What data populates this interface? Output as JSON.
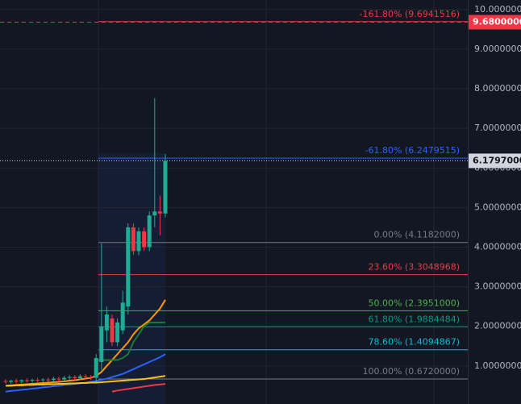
{
  "chart_data": {
    "type": "candlestick",
    "categories": [
      null,
      null,
      null,
      null,
      null,
      null,
      null,
      null,
      null,
      null,
      null,
      null,
      null,
      null,
      null,
      null,
      null,
      null,
      null,
      null,
      null,
      null,
      null,
      null,
      null,
      null,
      null,
      null,
      null,
      null,
      null
    ],
    "open": [
      0.62,
      0.6,
      0.63,
      0.61,
      0.64,
      0.63,
      0.65,
      0.64,
      0.66,
      0.65,
      0.68,
      0.66,
      0.7,
      0.72,
      0.69,
      0.74,
      0.72,
      0.7,
      1.1,
      1.9,
      2.2,
      1.6,
      1.9,
      2.5,
      4.5,
      3.9,
      4.4,
      4.0,
      4.8,
      4.9,
      4.85
    ],
    "high": [
      0.67,
      0.65,
      0.68,
      0.66,
      0.69,
      0.68,
      0.7,
      0.69,
      0.71,
      0.73,
      0.73,
      0.75,
      0.77,
      0.77,
      0.79,
      0.79,
      0.77,
      1.3,
      4.1,
      2.5,
      2.3,
      2.2,
      2.9,
      4.6,
      4.6,
      4.5,
      4.5,
      4.9,
      7.76,
      5.3,
      6.35
    ],
    "low": [
      0.55,
      0.55,
      0.56,
      0.56,
      0.58,
      0.58,
      0.59,
      0.59,
      0.6,
      0.6,
      0.61,
      0.61,
      0.65,
      0.64,
      0.64,
      0.67,
      0.65,
      0.6,
      0.9,
      1.6,
      1.5,
      1.5,
      1.8,
      2.3,
      3.8,
      3.8,
      3.9,
      3.9,
      4.5,
      4.3,
      4.75
    ],
    "close": [
      0.6,
      0.63,
      0.61,
      0.64,
      0.63,
      0.65,
      0.64,
      0.66,
      0.65,
      0.68,
      0.66,
      0.7,
      0.72,
      0.69,
      0.74,
      0.72,
      0.7,
      1.2,
      2.0,
      2.3,
      1.6,
      2.1,
      2.6,
      4.5,
      3.9,
      4.4,
      4.0,
      4.8,
      4.9,
      4.85,
      6.1797
    ],
    "up_color": "#22ab94",
    "down_color": "#f23645",
    "series": [
      {
        "color": "#ff9800",
        "values": [
          0.5,
          0.51,
          0.52,
          0.53,
          0.54,
          0.55,
          0.56,
          0.57,
          0.58,
          0.59,
          0.6,
          0.61,
          0.63,
          0.64,
          0.66,
          0.68,
          0.7,
          0.75,
          0.85,
          1.0,
          1.15,
          1.3,
          1.45,
          1.6,
          1.8,
          1.95,
          2.05,
          2.15,
          2.3,
          2.45,
          2.67
        ]
      },
      {
        "color": "#2962ff",
        "values": [
          0.35,
          0.37,
          0.38,
          0.4,
          0.41,
          0.43,
          0.44,
          0.46,
          0.47,
          0.49,
          0.5,
          0.52,
          0.53,
          0.55,
          0.56,
          0.58,
          0.6,
          0.62,
          0.65,
          0.68,
          0.72,
          0.76,
          0.8,
          0.86,
          0.92,
          0.98,
          1.04,
          1.1,
          1.16,
          1.22,
          1.3
        ]
      },
      {
        "color": "#f7c31a",
        "values": [
          0.5,
          0.5,
          0.51,
          0.51,
          0.52,
          0.52,
          0.53,
          0.53,
          0.54,
          0.54,
          0.55,
          0.55,
          0.56,
          0.56,
          0.57,
          0.57,
          0.58,
          0.58,
          0.59,
          0.6,
          0.61,
          0.62,
          0.63,
          0.64,
          0.65,
          0.66,
          0.67,
          0.69,
          0.71,
          0.73,
          0.75
        ]
      },
      {
        "color": "#1b7a34",
        "values": [
          null,
          null,
          null,
          null,
          null,
          null,
          null,
          null,
          null,
          null,
          null,
          null,
          null,
          null,
          null,
          null,
          null,
          1.15,
          1.15,
          1.15,
          1.15,
          1.15,
          1.2,
          1.3,
          1.6,
          1.8,
          2.0,
          2.1,
          2.1,
          2.1,
          2.1
        ]
      },
      {
        "color": "#f23645",
        "values": [
          null,
          null,
          null,
          null,
          null,
          null,
          null,
          null,
          null,
          null,
          null,
          null,
          null,
          null,
          null,
          null,
          null,
          null,
          null,
          null,
          0.35,
          0.38,
          0.4,
          0.42,
          0.44,
          0.46,
          0.48,
          0.5,
          0.52,
          0.53,
          0.55
        ]
      }
    ],
    "fib_levels": [
      {
        "label": "-161.80% (9.6941516)",
        "value": 9.6941516,
        "color": "#f23645"
      },
      {
        "label": "-61.80% (6.2479515)",
        "value": 6.2479515,
        "color": "#2962ff"
      },
      {
        "label": "0.00% (4.1182000)",
        "value": 4.1182,
        "color": "#787b86"
      },
      {
        "label": "23.60% (3.3048968)",
        "value": 3.3048968,
        "color": "#f23645"
      },
      {
        "label": "50.00% (2.3951000)",
        "value": 2.3951,
        "color": "#4caf50"
      },
      {
        "label": "61.80% (1.9884484)",
        "value": 1.9884484,
        "color": "#089981"
      },
      {
        "label": "78.60% (1.4094867)",
        "value": 1.4094867,
        "color": "#00bcd4"
      },
      {
        "label": "100.00% (0.6720000)",
        "value": 0.672,
        "color": "#787b86"
      }
    ],
    "price_labels": [
      {
        "label": "9.6800000",
        "value": 9.68,
        "color": "#f23645"
      },
      {
        "label": "6.1797000",
        "value": 6.1797,
        "color": "#d1d4dc"
      }
    ],
    "ylim": [
      0.04,
      10.24
    ],
    "yticks": [
      {
        "value": 1,
        "label": "1.0000000"
      },
      {
        "value": 2,
        "label": "2.0000000"
      },
      {
        "value": 3,
        "label": "3.0000000"
      },
      {
        "value": 4,
        "label": "4.0000000"
      },
      {
        "value": 5,
        "label": "5.0000000"
      },
      {
        "value": 6,
        "label": "6.0000000"
      },
      {
        "value": 7,
        "label": "7.0000000"
      },
      {
        "value": 8,
        "label": "8.0000000"
      },
      {
        "value": 9,
        "label": "9.0000000"
      },
      {
        "value": 10,
        "label": "10.0000000"
      }
    ],
    "grid": true
  }
}
